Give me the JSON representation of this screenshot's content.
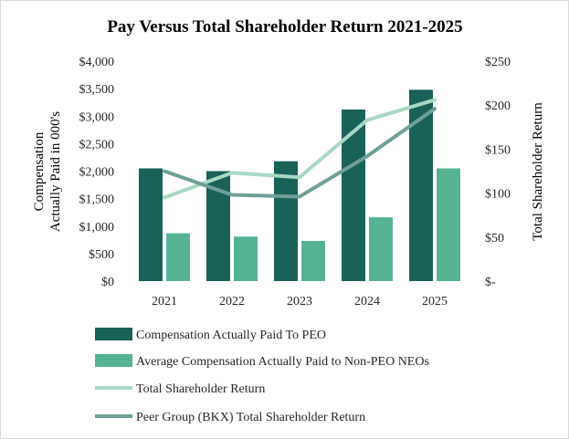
{
  "chart_data": {
    "type": "bar",
    "title": "Pay Versus Total Shareholder Return 2021-2025",
    "categories": [
      "2021",
      "2022",
      "2023",
      "2024",
      "2025"
    ],
    "left_axis": {
      "label_line1": "Compensation",
      "label_line2": "Actually Paid in 000's",
      "range": [
        0,
        4000
      ],
      "tick_labels": [
        "$0",
        "$500",
        "$1,000",
        "$1,500",
        "$2,000",
        "$2,500",
        "$3,000",
        "$3,500",
        "$4,000"
      ]
    },
    "right_axis": {
      "label": "Total Shareholder Return",
      "range": [
        0,
        250
      ],
      "tick_labels": [
        "$-",
        "$50",
        "$100",
        "$150",
        "$200",
        "$250"
      ]
    },
    "series": [
      {
        "name": "Compensation Actually Paid To PEO",
        "kind": "bar",
        "axis": "left",
        "color": "#1a6158",
        "values": [
          2050,
          2000,
          2180,
          3120,
          3480
        ]
      },
      {
        "name": "Average Compensation Actually Paid to Non-PEO NEOs",
        "kind": "bar",
        "axis": "left",
        "color": "#55b393",
        "values": [
          870,
          810,
          730,
          1160,
          2050
        ]
      },
      {
        "name": "Total Shareholder Return",
        "kind": "line",
        "axis": "right",
        "color": "#a8d9c4",
        "values": [
          95,
          123,
          118,
          183,
          206
        ]
      },
      {
        "name": "Peer Group (BKX) Total Shareholder Return",
        "kind": "line",
        "axis": "right",
        "color": "#6f9f97",
        "values": [
          125,
          98,
          96,
          142,
          196
        ]
      }
    ]
  }
}
